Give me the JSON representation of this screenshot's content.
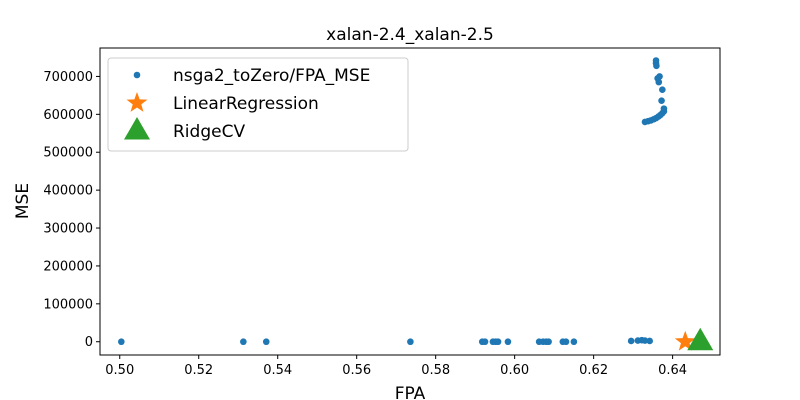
{
  "chart_data": {
    "type": "scatter",
    "title": "xalan-2.4_xalan-2.5",
    "xlabel": "FPA",
    "ylabel": "MSE",
    "xlim": [
      0.495,
      0.652
    ],
    "ylim": [
      -35000,
      775000
    ],
    "xticks": [
      0.5,
      0.52,
      0.54,
      0.56,
      0.58,
      0.6,
      0.62,
      0.64
    ],
    "xtick_labels": [
      "0.50",
      "0.52",
      "0.54",
      "0.56",
      "0.58",
      "0.60",
      "0.62",
      "0.64"
    ],
    "yticks": [
      0,
      100000,
      200000,
      300000,
      400000,
      500000,
      600000,
      700000
    ],
    "ytick_labels": [
      "0",
      "100000",
      "200000",
      "300000",
      "400000",
      "500000",
      "600000",
      "700000"
    ],
    "legend_position": "top-left",
    "series": [
      {
        "name": "nsga2_toZero/FPA_MSE",
        "marker": "circle",
        "color": "#1f77b4",
        "points": [
          [
            0.5004,
            0
          ],
          [
            0.5313,
            0
          ],
          [
            0.5371,
            0
          ],
          [
            0.5736,
            0
          ],
          [
            0.5918,
            0
          ],
          [
            0.5925,
            0
          ],
          [
            0.5945,
            0
          ],
          [
            0.5952,
            0
          ],
          [
            0.5958,
            0
          ],
          [
            0.5983,
            0
          ],
          [
            0.6062,
            0
          ],
          [
            0.6072,
            0
          ],
          [
            0.608,
            0
          ],
          [
            0.6086,
            0
          ],
          [
            0.6122,
            0
          ],
          [
            0.613,
            0
          ],
          [
            0.615,
            0
          ],
          [
            0.6295,
            2000
          ],
          [
            0.6312,
            3000
          ],
          [
            0.6322,
            4000
          ],
          [
            0.633,
            3000
          ],
          [
            0.6342,
            2000
          ],
          [
            0.633,
            580000
          ],
          [
            0.6338,
            582000
          ],
          [
            0.6345,
            584000
          ],
          [
            0.6352,
            587000
          ],
          [
            0.6358,
            590000
          ],
          [
            0.6364,
            594000
          ],
          [
            0.6369,
            598000
          ],
          [
            0.6374,
            603000
          ],
          [
            0.6378,
            608000
          ],
          [
            0.6378,
            615000
          ],
          [
            0.6372,
            636000
          ],
          [
            0.6374,
            665000
          ],
          [
            0.6365,
            685000
          ],
          [
            0.6362,
            695000
          ],
          [
            0.6367,
            700000
          ],
          [
            0.6359,
            728000
          ],
          [
            0.6358,
            735000
          ],
          [
            0.6358,
            742000
          ]
        ]
      },
      {
        "name": "LinearRegression",
        "marker": "star",
        "color": "#ff7f0e",
        "points": [
          [
            0.6432,
            0
          ]
        ]
      },
      {
        "name": "RidgeCV",
        "marker": "triangle",
        "color": "#2ca02c",
        "points": [
          [
            0.647,
            0
          ]
        ]
      }
    ]
  }
}
